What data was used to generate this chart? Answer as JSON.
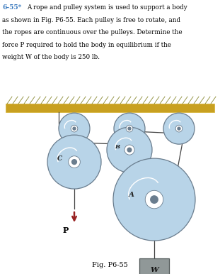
{
  "title_num": "6-55*",
  "title_color": "#3a7abf",
  "fig_label": "Fig. P6-55",
  "text_lines": [
    "A rope and pulley system is used to support a body",
    "as shown in Fig. P6-55. Each pulley is free to rotate, and",
    "the ropes are continuous over the pulleys. Determine the",
    "force P required to hold the body in equilibrium if the",
    "weight W of the body is 250 lb."
  ],
  "pulley_fill": "#b8d4e8",
  "pulley_fill2": "#c8dff0",
  "pulley_edge": "#6a7d8e",
  "axle_fill": "#9aabb8",
  "axle_edge": "#556070",
  "rope_color": "#444444",
  "arrow_color": "#992222",
  "weight_fill": "#909898",
  "weight_edge": "#505858",
  "ceil_top": "#c8a020",
  "ceil_bot": "#d4b030",
  "hatch_color": "#888830",
  "bg": "#ffffff"
}
